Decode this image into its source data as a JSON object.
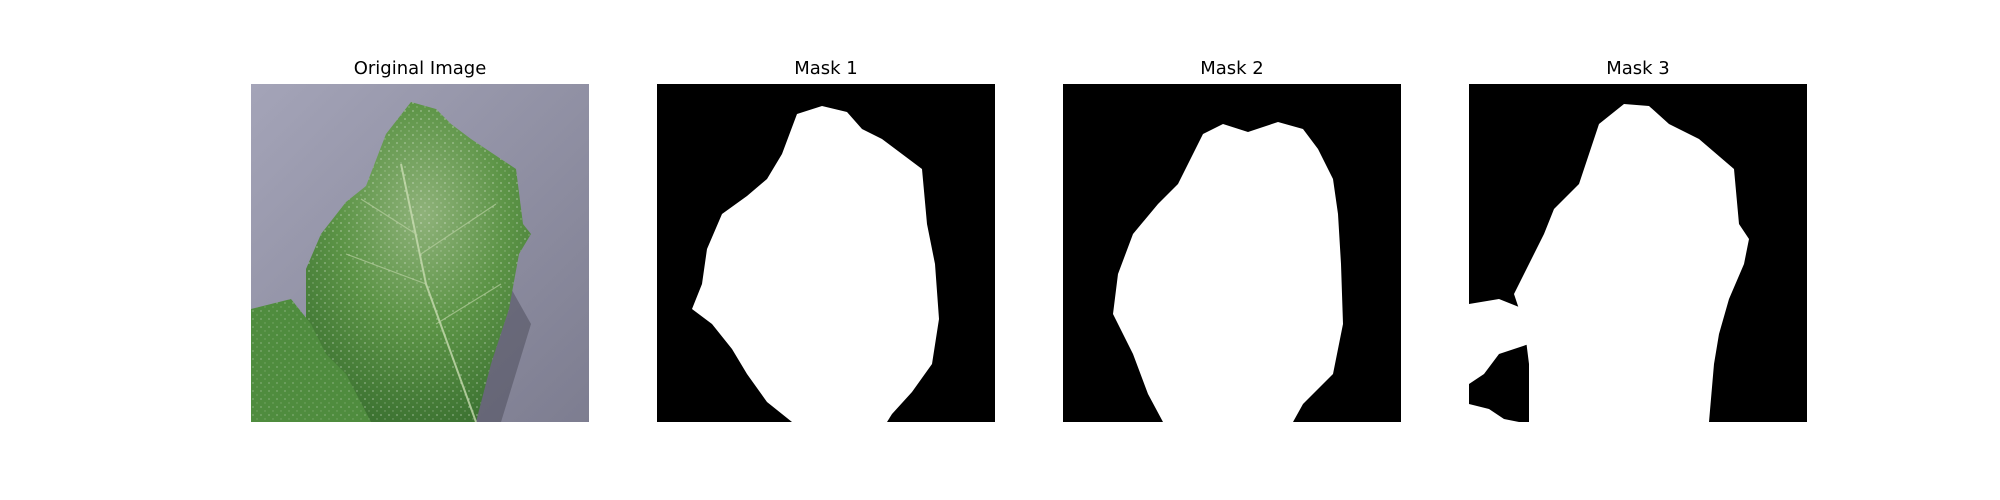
{
  "figure": {
    "panels": [
      {
        "id": "original",
        "title": "Original Image",
        "content": "photo of a green leaf with white powdery spots on a grey surface"
      },
      {
        "id": "mask1",
        "title": "Mask 1",
        "content": "binary segmentation mask, white leaf region on black"
      },
      {
        "id": "mask2",
        "title": "Mask 2",
        "content": "binary segmentation mask, white leaf region on black"
      },
      {
        "id": "mask3",
        "title": "Mask 3",
        "content": "binary segmentation mask, white leaf region on black with extra blobs at lower left"
      }
    ],
    "colors": {
      "background": "#ffffff",
      "mask_foreground": "#ffffff",
      "mask_background": "#000000",
      "photo_surface": "#8f8fa3",
      "leaf_green": "#4c8a3c"
    }
  }
}
